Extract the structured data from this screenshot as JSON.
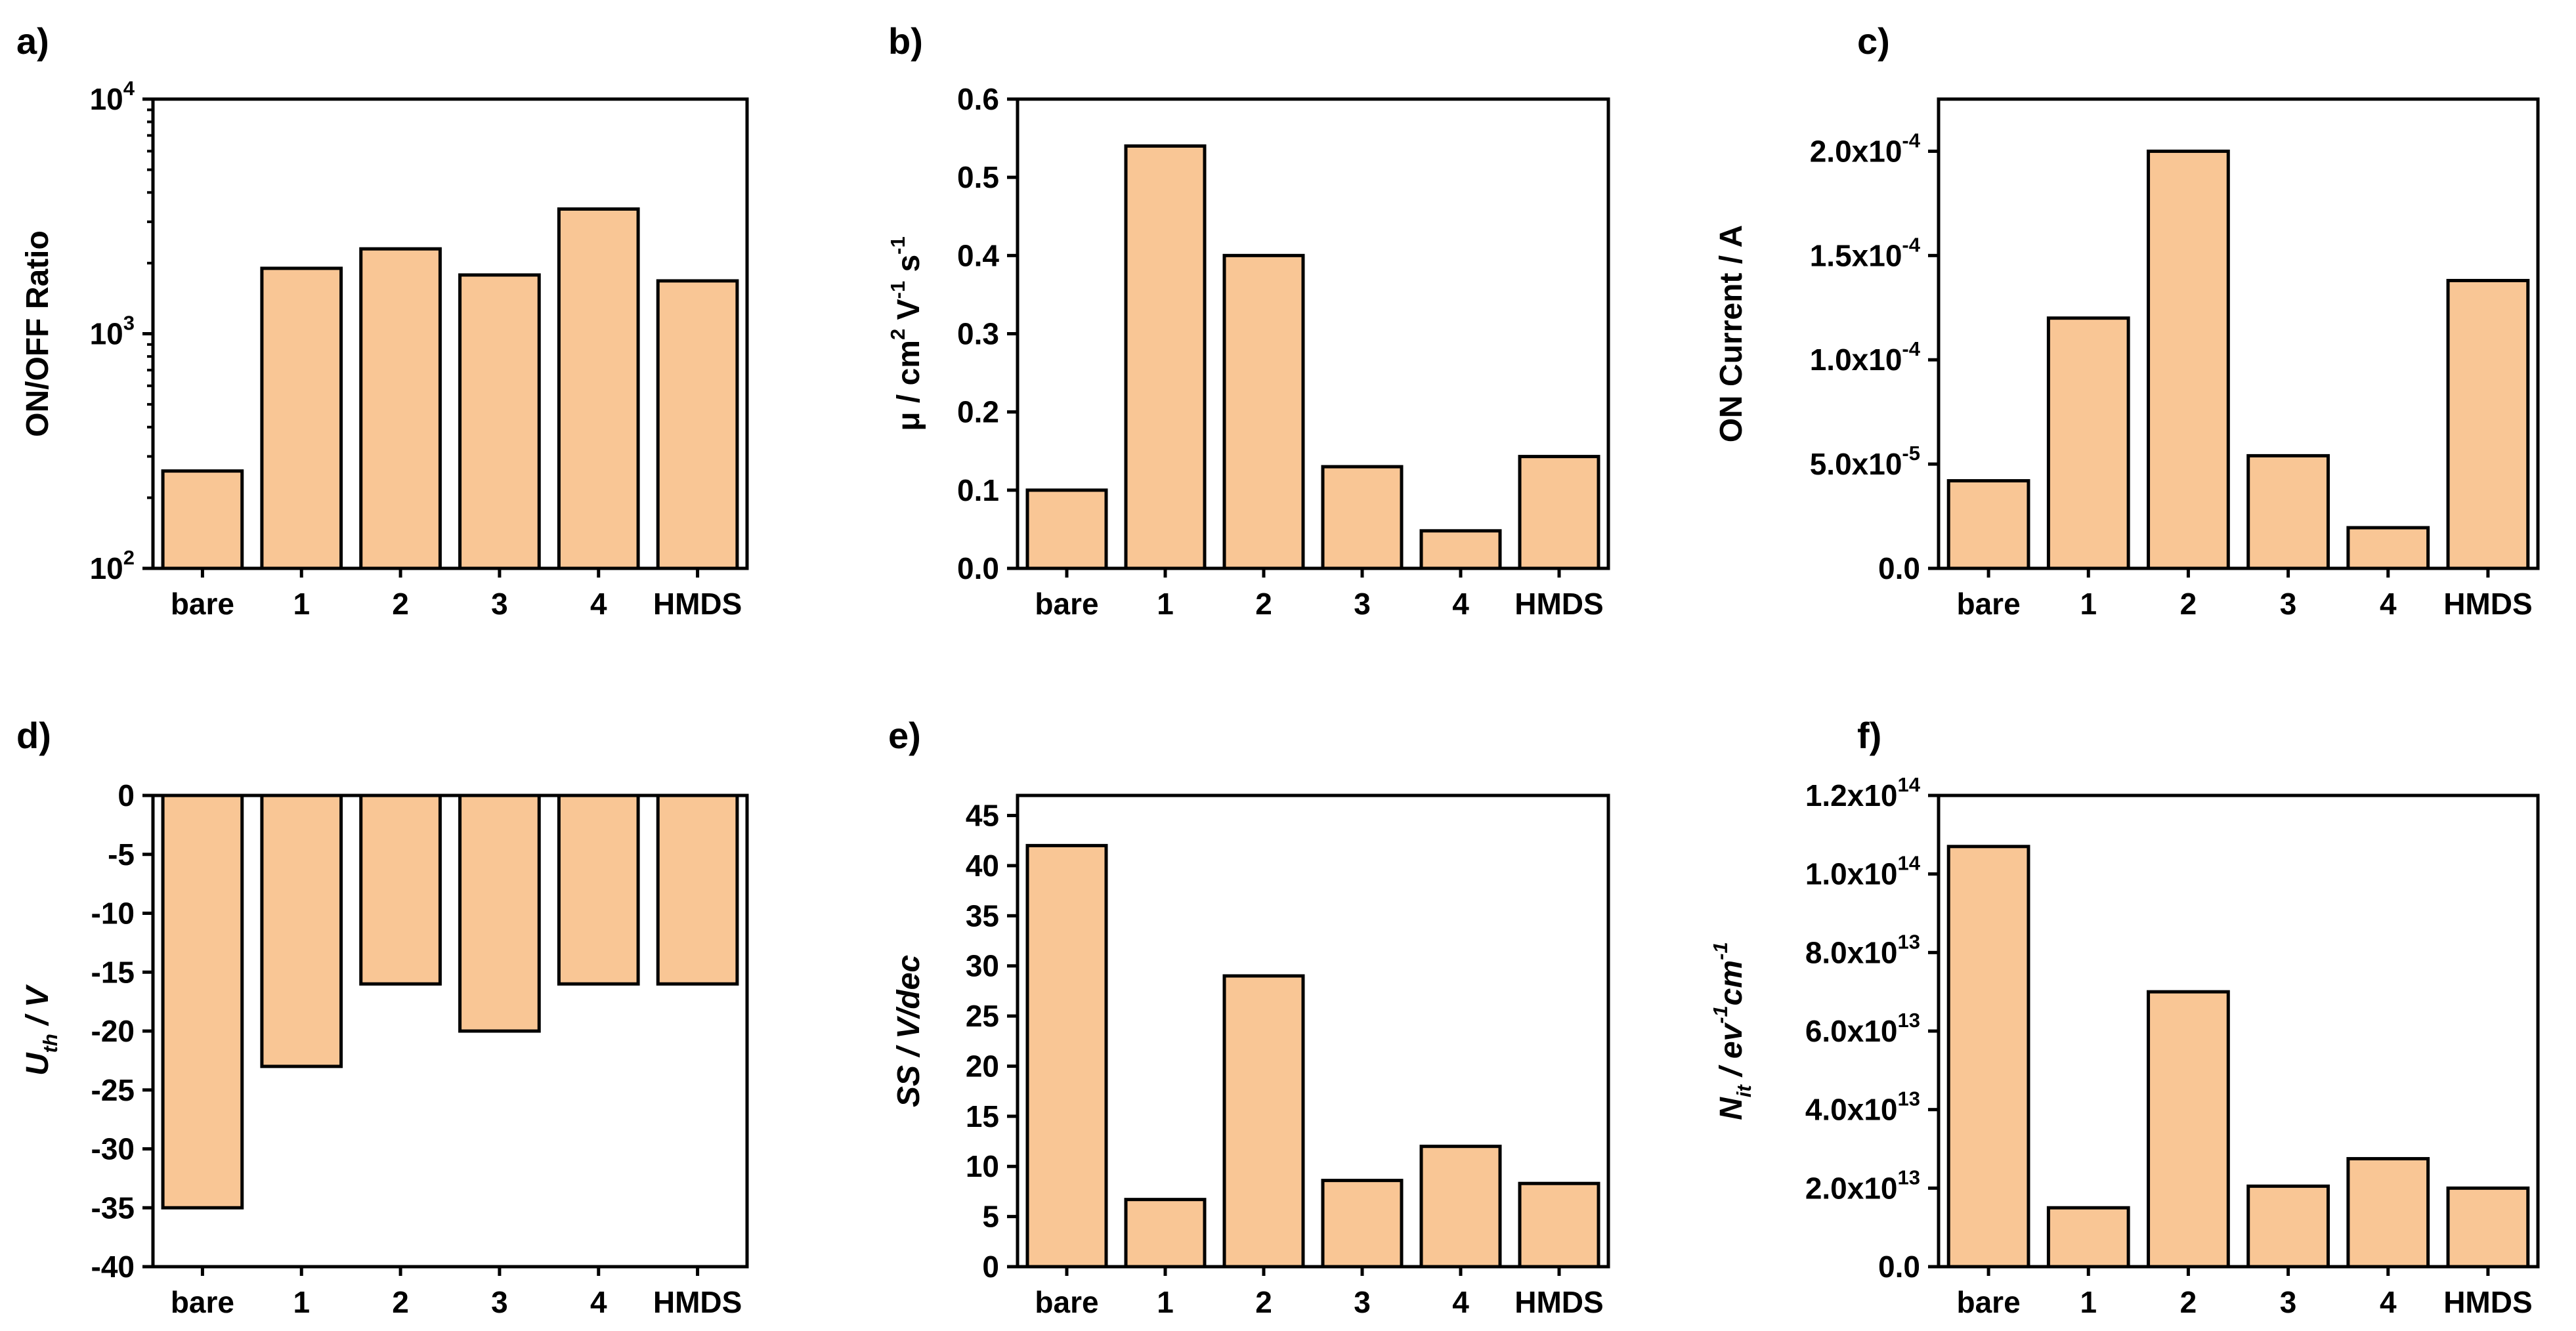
{
  "figure": {
    "bar_color": "#f9c695",
    "bar_stroke": "#000000"
  },
  "chart_data": [
    {
      "id": "a",
      "panel_label": "a)",
      "type": "bar",
      "yscale": "log",
      "categories": [
        "bare",
        "1",
        "2",
        "3",
        "4",
        "HMDS"
      ],
      "values": [
        260,
        1900,
        2300,
        1780,
        3400,
        1680
      ],
      "ylim": [
        100,
        10000
      ],
      "yticks": [
        100,
        1000,
        10000
      ],
      "ytick_labels": [
        {
          "base": "10",
          "exp": "2"
        },
        {
          "base": "10",
          "exp": "3"
        },
        {
          "base": "10",
          "exp": "4"
        }
      ],
      "ylabel": [
        {
          "t": "ON/OFF Ratio"
        }
      ]
    },
    {
      "id": "b",
      "panel_label": "b)",
      "type": "bar",
      "yscale": "linear",
      "categories": [
        "bare",
        "1",
        "2",
        "3",
        "4",
        "HMDS"
      ],
      "values": [
        0.1,
        0.54,
        0.4,
        0.13,
        0.048,
        0.143
      ],
      "ylim": [
        0,
        0.6
      ],
      "yticks": [
        0.0,
        0.1,
        0.2,
        0.3,
        0.4,
        0.5,
        0.6
      ],
      "ytick_labels": [
        "0.0",
        "0.1",
        "0.2",
        "0.3",
        "0.4",
        "0.5",
        "0.6"
      ],
      "ylabel": [
        {
          "t": "μ / cm"
        },
        {
          "t": "2",
          "s": "sup"
        },
        {
          "t": " V"
        },
        {
          "t": "-1",
          "s": "sup"
        },
        {
          "t": " s"
        },
        {
          "t": "-1",
          "s": "sup"
        }
      ]
    },
    {
      "id": "c",
      "panel_label": "c)",
      "type": "bar",
      "yscale": "linear",
      "categories": [
        "bare",
        "1",
        "2",
        "3",
        "4",
        "HMDS"
      ],
      "values": [
        4.2e-05,
        0.00012,
        0.0002,
        5.4e-05,
        1.95e-05,
        0.000138
      ],
      "ylim": [
        0,
        0.000225
      ],
      "yticks": [
        0,
        5e-05,
        0.0001,
        0.00015,
        0.0002
      ],
      "ytick_labels": [
        {
          "base": "0.0"
        },
        {
          "base": "5.0x10",
          "exp": "-5"
        },
        {
          "base": "1.0x10",
          "exp": "-4"
        },
        {
          "base": "1.5x10",
          "exp": "-4"
        },
        {
          "base": "2.0x10",
          "exp": "-4"
        }
      ],
      "ylabel": [
        {
          "t": "ON Current / A"
        }
      ]
    },
    {
      "id": "d",
      "panel_label": "d)",
      "type": "bar",
      "yscale": "linear",
      "categories": [
        "bare",
        "1",
        "2",
        "3",
        "4",
        "HMDS"
      ],
      "values": [
        -35,
        -23,
        -16,
        -20,
        -16,
        -16
      ],
      "ylim": [
        -40,
        0
      ],
      "yticks": [
        0,
        -5,
        -10,
        -15,
        -20,
        -25,
        -30,
        -35,
        -40
      ],
      "ytick_labels": [
        "0",
        "-5",
        "-10",
        "-15",
        "-20",
        "-25",
        "-30",
        "-35",
        "-40"
      ],
      "ylabel": [
        {
          "t": "U",
          "i": true
        },
        {
          "t": "th",
          "s": "sub",
          "i": true
        },
        {
          "t": " / V",
          "i": true
        }
      ]
    },
    {
      "id": "e",
      "panel_label": "e)",
      "type": "bar",
      "yscale": "linear",
      "categories": [
        "bare",
        "1",
        "2",
        "3",
        "4",
        "HMDS"
      ],
      "values": [
        42,
        6.7,
        29,
        8.6,
        12,
        8.3
      ],
      "ylim": [
        0,
        47
      ],
      "yticks": [
        0,
        5,
        10,
        15,
        20,
        25,
        30,
        35,
        40,
        45
      ],
      "ytick_labels": [
        "0",
        "5",
        "10",
        "15",
        "20",
        "25",
        "30",
        "35",
        "40",
        "45"
      ],
      "ylabel": [
        {
          "t": "SS / V/dec",
          "i": true
        }
      ]
    },
    {
      "id": "f",
      "panel_label": "f)",
      "type": "bar",
      "yscale": "linear",
      "categories": [
        "bare",
        "1",
        "2",
        "3",
        "4",
        "HMDS"
      ],
      "values": [
        107000000000000.0,
        15000000000000.0,
        70000000000000.0,
        20500000000000.0,
        27500000000000.0,
        20000000000000.0
      ],
      "ylim": [
        0,
        120000000000000.0
      ],
      "yticks": [
        0,
        20000000000000.0,
        40000000000000.0,
        60000000000000.0,
        80000000000000.0,
        100000000000000.0,
        120000000000000.0
      ],
      "ytick_labels": [
        {
          "base": "0.0"
        },
        {
          "base": "2.0x10",
          "exp": "13"
        },
        {
          "base": "4.0x10",
          "exp": "13"
        },
        {
          "base": "6.0x10",
          "exp": "13"
        },
        {
          "base": "8.0x10",
          "exp": "13"
        },
        {
          "base": "1.0x10",
          "exp": "14"
        },
        {
          "base": "1.2x10",
          "exp": "14"
        }
      ],
      "ylabel": [
        {
          "t": "N",
          "i": true
        },
        {
          "t": "it",
          "s": "sub",
          "i": true
        },
        {
          "t": " / ev",
          "i": true
        },
        {
          "t": "-1",
          "s": "sup",
          "i": true
        },
        {
          "t": "cm",
          "i": true
        },
        {
          "t": "-1",
          "s": "sup",
          "i": true
        }
      ]
    }
  ]
}
